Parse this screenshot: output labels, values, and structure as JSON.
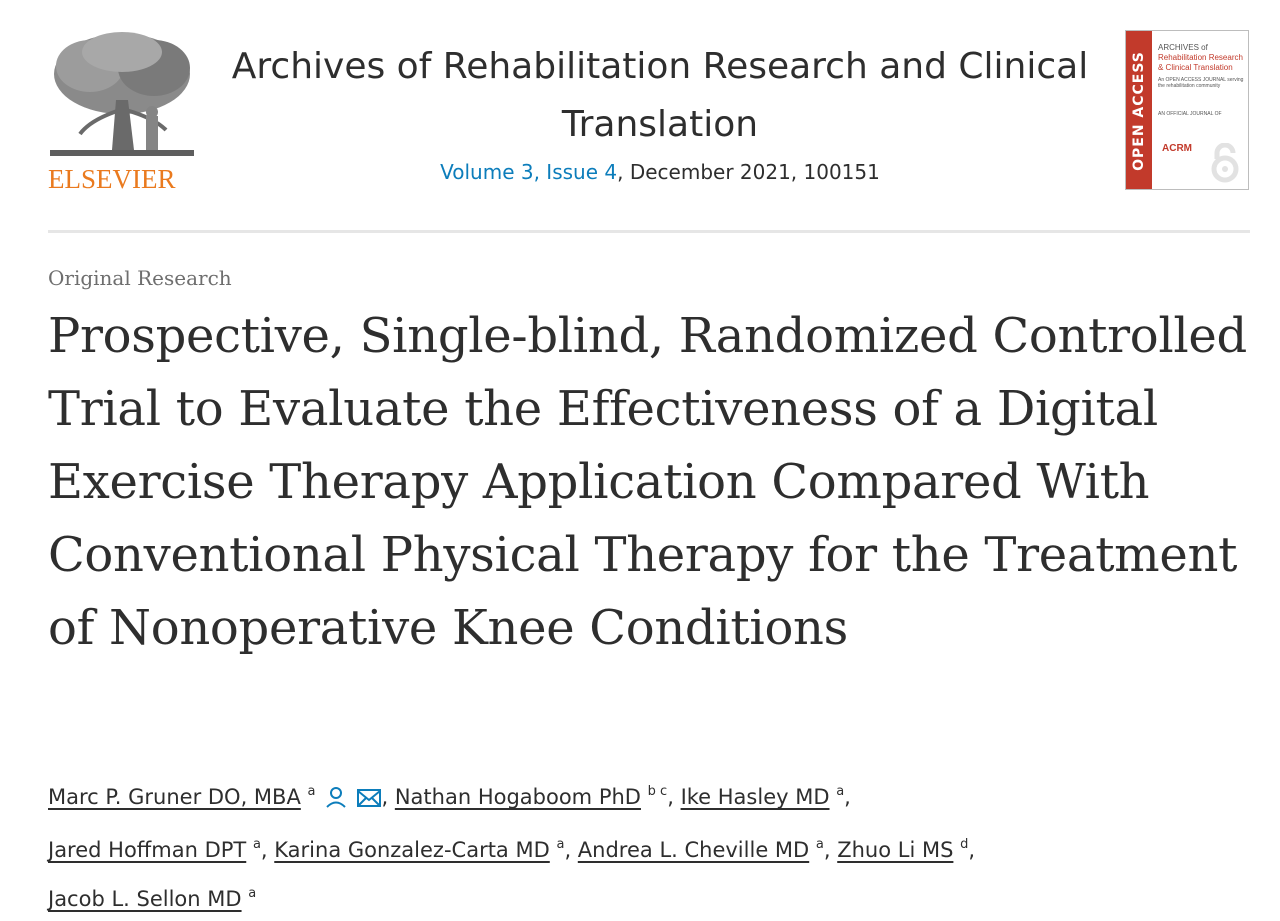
{
  "publisher": {
    "name": "ELSEVIER",
    "brand_color": "#ea7a1e"
  },
  "journal": {
    "title": "Archives of Rehabilitation Research and Clinical Translation",
    "volume_issue": "Volume 3, Issue 4",
    "date_page": ", December 2021, 100151"
  },
  "cover": {
    "band_text": "OPEN ACCESS",
    "heading_line1": "ARCHIVES of",
    "heading_line2": "Rehabilitation Research & Clinical Translation",
    "tagline": "An OPEN ACCESS JOURNAL serving the rehabilitation community",
    "official": "AN OFFICIAL JOURNAL OF",
    "society": "ACRM",
    "band_color": "#c23a2b"
  },
  "article": {
    "type": "Original Research",
    "title": "Prospective, Single-blind, Randomized Controlled Trial to Evaluate the Effectiveness of a Digital Exercise Therapy Application Compared With Conventional Physical Therapy for the Treatment of Nonoperative Knee Conditions"
  },
  "authors": [
    {
      "name": "Marc P. Gruner DO, MBA",
      "sup": "a",
      "icons": [
        "person-icon",
        "envelope-icon"
      ]
    },
    {
      "name": "Nathan Hogaboom PhD",
      "sup": "b c"
    },
    {
      "name": "Ike Hasley MD",
      "sup": "a"
    },
    {
      "name": "Jared Hoffman DPT",
      "sup": "a"
    },
    {
      "name": "Karina Gonzalez-Carta MD",
      "sup": "a"
    },
    {
      "name": "Andrea L. Cheville MD",
      "sup": "a"
    },
    {
      "name": "Zhuo Li MS",
      "sup": "d"
    },
    {
      "name": "Jacob L. Sellon MD",
      "sup": "a"
    }
  ],
  "colors": {
    "link": "#0c7dbb",
    "text": "#2e2e2e",
    "muted": "#6e6e6e"
  }
}
